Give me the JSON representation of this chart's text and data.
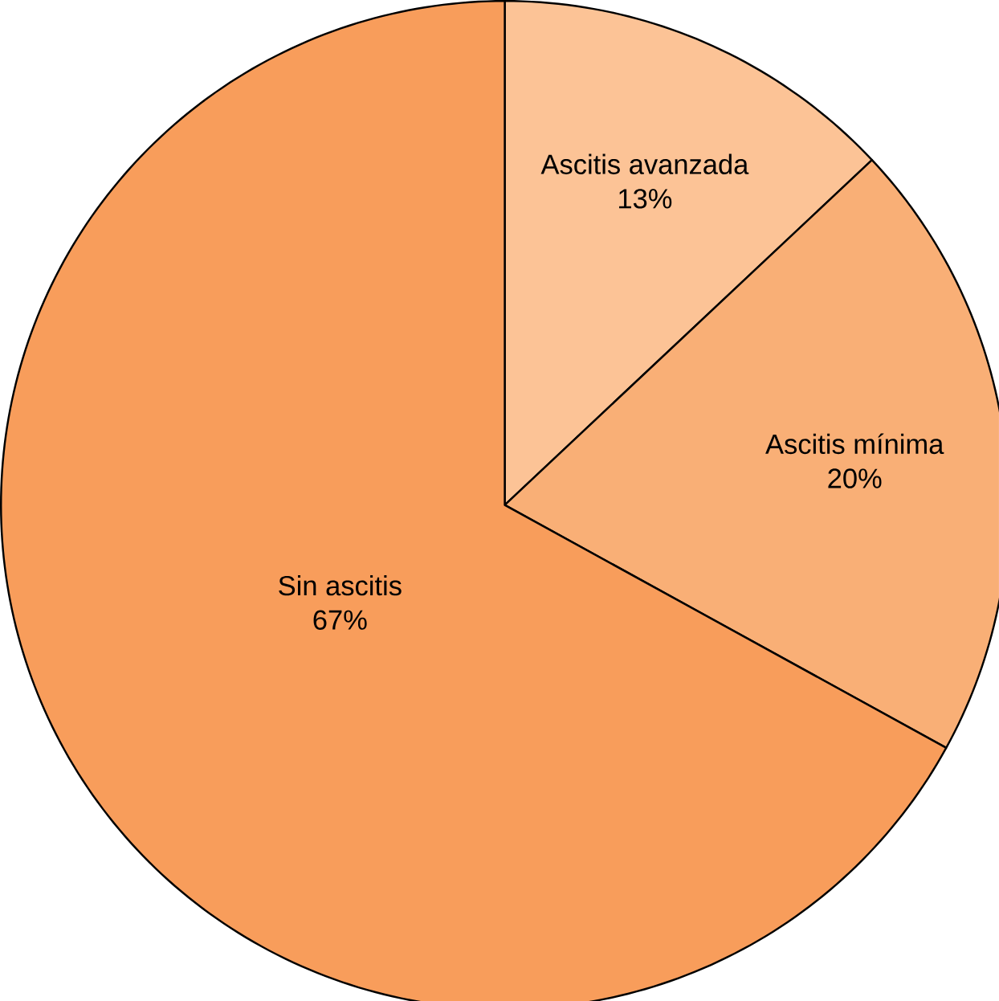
{
  "chart_data": {
    "type": "pie",
    "categories": [
      "Ascitis avanzada",
      "Ascitis mínima",
      "Sin ascitis"
    ],
    "values": [
      13,
      20,
      67
    ],
    "value_labels": [
      "13%",
      "20%",
      "67%"
    ],
    "colors": [
      "#fcc396",
      "#f9af76",
      "#f89d5b"
    ]
  }
}
